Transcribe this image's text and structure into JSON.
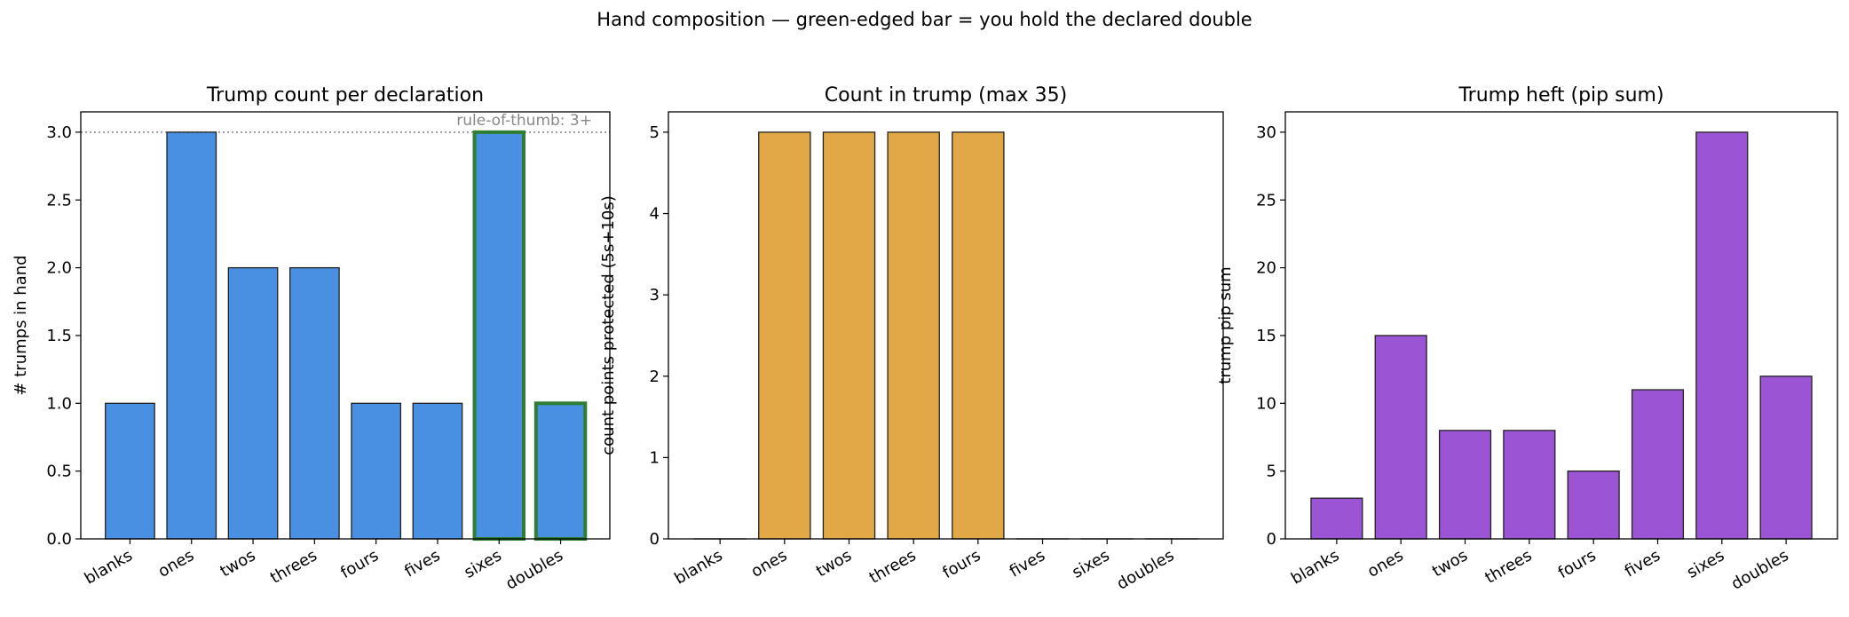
{
  "figure": {
    "suptitle": "Hand composition — green-edged bar = you hold the declared double"
  },
  "chart_data": [
    {
      "type": "bar",
      "title": "Trump count per declaration",
      "xlabel": "",
      "ylabel": "# trumps in hand",
      "categories": [
        "blanks",
        "ones",
        "twos",
        "threes",
        "fours",
        "fives",
        "sixes",
        "doubles"
      ],
      "values": [
        1,
        3,
        2,
        2,
        1,
        1,
        3,
        1
      ],
      "ylim": [
        0,
        3.15
      ],
      "yticks": [
        "0.0",
        "0.5",
        "1.0",
        "1.5",
        "2.0",
        "2.5",
        "3.0"
      ],
      "bar_color": "#4a90e2",
      "highlight_categories": [
        "sixes",
        "doubles"
      ],
      "highlight_edge_color": "#2e7d32",
      "reference_line": {
        "y": 3,
        "label": "rule-of-thumb: 3+",
        "style": "dotted",
        "color": "#888888"
      }
    },
    {
      "type": "bar",
      "title": "Count in trump (max 35)",
      "xlabel": "",
      "ylabel": "count points protected (5s+10s)",
      "categories": [
        "blanks",
        "ones",
        "twos",
        "threes",
        "fours",
        "fives",
        "sixes",
        "doubles"
      ],
      "values": [
        0,
        5,
        5,
        5,
        5,
        0,
        0,
        0
      ],
      "ylim": [
        0,
        5.25
      ],
      "yticks": [
        "0",
        "1",
        "2",
        "3",
        "4",
        "5"
      ],
      "bar_color": "#e3a846"
    },
    {
      "type": "bar",
      "title": "Trump heft (pip sum)",
      "xlabel": "",
      "ylabel": "trump pip sum",
      "categories": [
        "blanks",
        "ones",
        "twos",
        "threes",
        "fours",
        "fives",
        "sixes",
        "doubles"
      ],
      "values": [
        3,
        15,
        8,
        8,
        5,
        11,
        30,
        12
      ],
      "ylim": [
        0,
        31.5
      ],
      "yticks": [
        "0",
        "5",
        "10",
        "15",
        "20",
        "25",
        "30"
      ],
      "bar_color": "#9b55d4"
    }
  ]
}
